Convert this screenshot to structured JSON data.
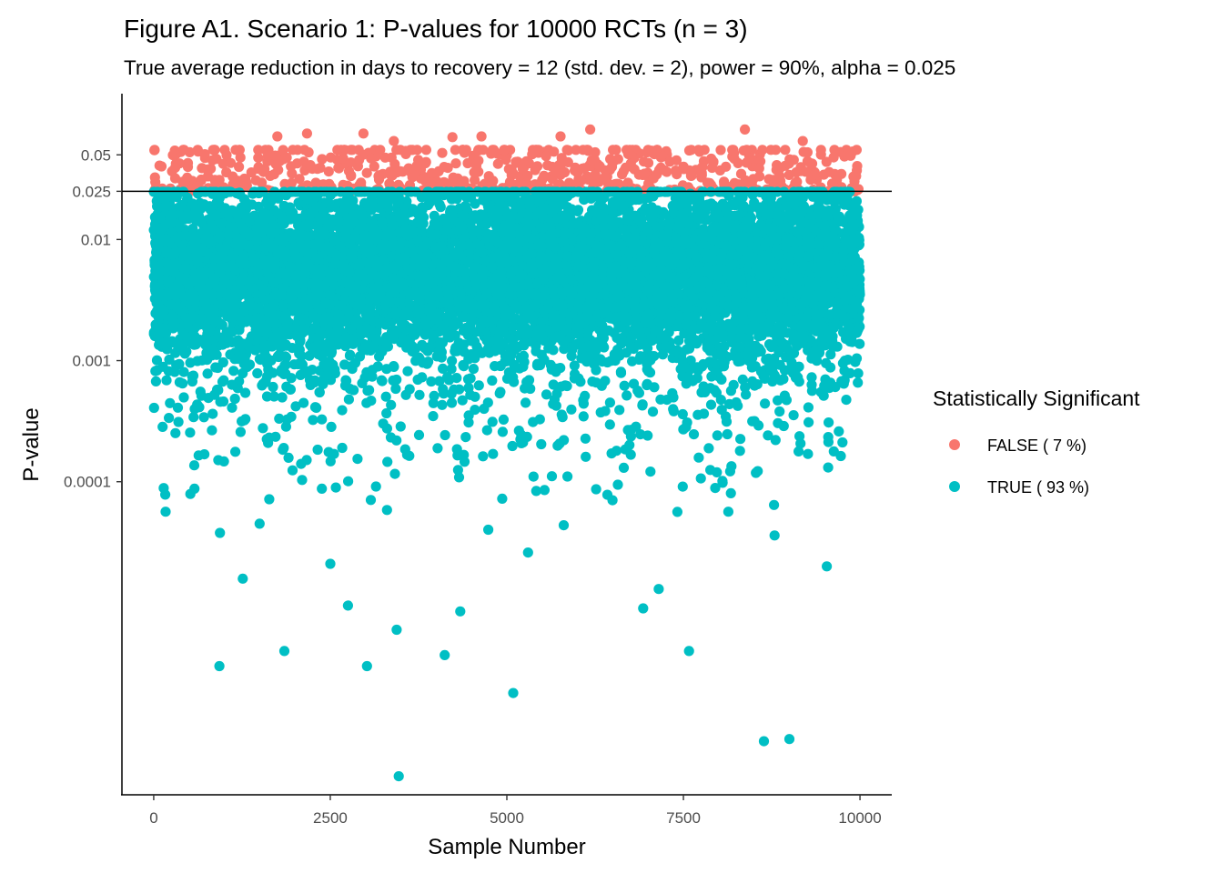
{
  "chart_data": {
    "type": "scatter",
    "title": "Figure A1. Scenario 1: P-values for 10000 RCTs (n = 3)",
    "subtitle": "True average reduction in days to recovery = 12 (std. dev. = 2), power = 90%, alpha = 0.025",
    "xlabel": "Sample Number",
    "ylabel": "P-value",
    "x_ticks": [
      "0",
      "2500",
      "5000",
      "7500",
      "10000"
    ],
    "x_tick_values": [
      0,
      2500,
      5000,
      7500,
      10000
    ],
    "y_ticks": [
      "0.0001",
      "0.001",
      "0.01",
      "0.025",
      "0.05"
    ],
    "y_tick_values": [
      0.0001,
      0.001,
      0.01,
      0.025,
      0.05
    ],
    "y_scale": "log10",
    "xlim": [
      -450,
      10450
    ],
    "ylim": [
      2.6e-07,
      0.16
    ],
    "reference_line": {
      "y": 0.025,
      "color": "#000000"
    },
    "grid": false,
    "legend": {
      "title": "Statistically Significant",
      "position": "right",
      "entries": [
        "FALSE ( 7 %)",
        "TRUE ( 93 %)"
      ]
    },
    "series": [
      {
        "name": "FALSE ( 7 %)",
        "color": "#F8766D",
        "share_percent": 7,
        "p_range": [
          0.025,
          0.09
        ],
        "points": [
          [
            6180,
            0.081
          ],
          [
            8370,
            0.081
          ],
          [
            2170,
            0.075
          ],
          [
            2970,
            0.075
          ],
          [
            1750,
            0.071
          ],
          [
            4640,
            0.071
          ],
          [
            4230,
            0.07
          ],
          [
            5760,
            0.071
          ],
          [
            9190,
            0.065
          ],
          [
            3400,
            0.065
          ]
        ]
      },
      {
        "name": "TRUE ( 93 %)",
        "color": "#00BFC4",
        "share_percent": 93,
        "p_range": [
          3e-07,
          0.025
        ],
        "points": [
          [
            930,
            3e-06
          ],
          [
            1850,
            4e-06
          ],
          [
            3020,
            3e-06
          ],
          [
            3470,
            3.7e-07
          ],
          [
            3440,
            6e-06
          ],
          [
            4120,
            3.7e-06
          ],
          [
            4340,
            8.5e-06
          ],
          [
            5090,
            1.8e-06
          ],
          [
            5300,
            2.6e-05
          ],
          [
            6930,
            9e-06
          ],
          [
            7150,
            1.3e-05
          ],
          [
            7580,
            4e-06
          ],
          [
            8640,
            7.2e-07
          ],
          [
            9000,
            7.5e-07
          ],
          [
            9530,
            2e-05
          ],
          [
            8790,
            3.6e-05
          ],
          [
            2500,
            2.1e-05
          ],
          [
            2750,
            9.5e-06
          ],
          [
            1500,
            4.5e-05
          ]
        ]
      }
    ]
  }
}
